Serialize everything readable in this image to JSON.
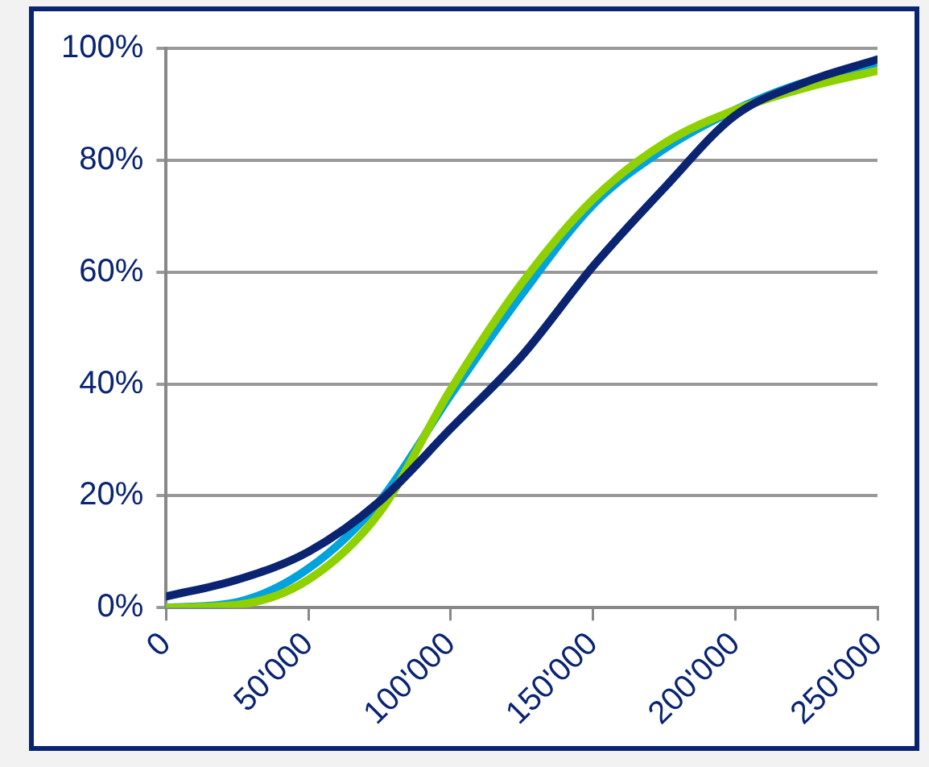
{
  "chart_data": {
    "type": "line",
    "x": [
      0,
      25000,
      50000,
      75000,
      100000,
      125000,
      150000,
      175000,
      200000,
      225000,
      250000
    ],
    "series": [
      {
        "color": "#0a2472",
        "values": [
          2,
          5,
          10,
          19,
          32,
          45,
          61,
          75,
          88,
          94,
          98
        ]
      },
      {
        "color": "#8fd100",
        "values": [
          0,
          0.5,
          5,
          17,
          39,
          58,
          73,
          83,
          89,
          93,
          96
        ]
      },
      {
        "color": "#00a3dd",
        "values": [
          0,
          1,
          7,
          19,
          38,
          56,
          72,
          82,
          89,
          94,
          96.5
        ]
      }
    ],
    "xlim": [
      0,
      250000
    ],
    "xticks": [
      {
        "value": 0,
        "label": "0"
      },
      {
        "value": 50000,
        "label": "50'000"
      },
      {
        "value": 100000,
        "label": "100'000"
      },
      {
        "value": 150000,
        "label": "150'000"
      },
      {
        "value": 200000,
        "label": "200'000"
      },
      {
        "value": 250000,
        "label": "250'000"
      }
    ],
    "ylim": [
      0,
      100
    ],
    "yticks": [
      {
        "value": 0,
        "label": "0%"
      },
      {
        "value": 20,
        "label": "20%"
      },
      {
        "value": 40,
        "label": "40%"
      },
      {
        "value": 60,
        "label": "60%"
      },
      {
        "value": 80,
        "label": "80%"
      },
      {
        "value": 100,
        "label": "100%"
      }
    ],
    "grid": "y",
    "marker": "none",
    "line_style": "solid"
  }
}
